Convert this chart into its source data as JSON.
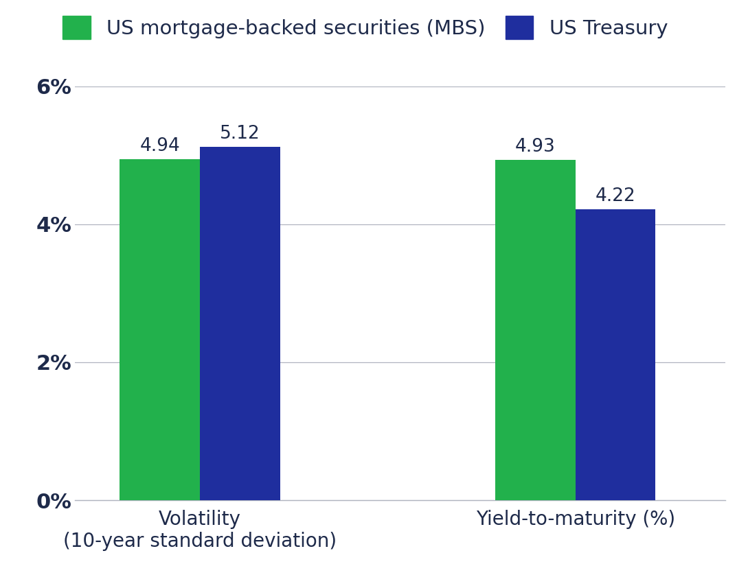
{
  "categories": [
    "Volatility\n(10-year standard deviation)",
    "Yield-to-maturity (%)"
  ],
  "mbs_values": [
    4.94,
    4.93
  ],
  "treasury_values": [
    5.12,
    4.22
  ],
  "mbs_color": "#22b14c",
  "treasury_color": "#1f2e9e",
  "legend_labels": [
    "US mortgage-backed securities (MBS)",
    "US Treasury"
  ],
  "ylim": [
    0,
    6.0
  ],
  "yticks": [
    0,
    2,
    4,
    6
  ],
  "ytick_labels": [
    "0%",
    "2%",
    "4%",
    "6%"
  ],
  "bar_width": 0.32,
  "annotation_fontsize": 19,
  "tick_fontsize": 22,
  "legend_fontsize": 21,
  "xlabel_fontsize": 20,
  "label_color": "#1e2a4a",
  "background_color": "#ffffff",
  "grid_color": "#b0b4c0"
}
